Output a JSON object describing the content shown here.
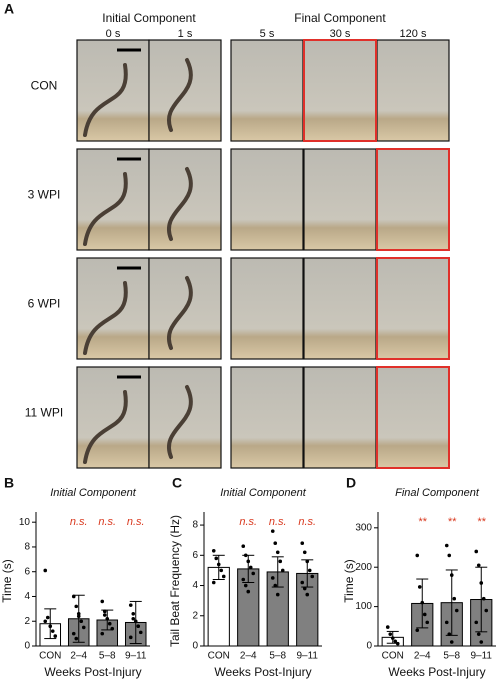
{
  "panel_a": {
    "label": "A",
    "headers": [
      "Initial Component",
      "Final Component"
    ],
    "times": [
      "0 s",
      "1 s",
      "5 s",
      "30 s",
      "120 s"
    ],
    "rows": [
      {
        "label": "CON",
        "highlight": 3
      },
      {
        "label": "3 WPI",
        "highlight": 4
      },
      {
        "label": "6 WPI",
        "highlight": 4
      },
      {
        "label": "11 WPI",
        "highlight": 4
      }
    ]
  },
  "chart_data": [
    {
      "type": "bar",
      "panel_label": "B",
      "title": "Initial Component",
      "y_label": "Time (s)",
      "x_label": "Weeks Post-Injury",
      "categories": [
        "CON",
        "2–4",
        "5–8",
        "9–11"
      ],
      "values": [
        1.8,
        2.2,
        2.1,
        1.9
      ],
      "errors": [
        1.2,
        1.9,
        0.8,
        1.7
      ],
      "points": [
        [
          6.1,
          2.3,
          1.6,
          1.2,
          0.8,
          2.0
        ],
        [
          4.0,
          3.2,
          2.6,
          2.0,
          1.5,
          1.0,
          0.6,
          2.4
        ],
        [
          3.6,
          2.8,
          2.2,
          1.8,
          1.4,
          1.0,
          2.5
        ],
        [
          3.3,
          2.6,
          2.0,
          1.6,
          1.1,
          0.7,
          2.2
        ]
      ],
      "annotations": [
        null,
        "n.s.",
        "n.s.",
        "n.s."
      ],
      "colors": [
        "#ffffff",
        "#808080",
        "#808080",
        "#808080"
      ],
      "annotation_color": "#d9391f",
      "ylim": [
        0,
        10.5
      ],
      "yticks": [
        0,
        2,
        4,
        6,
        8,
        10
      ]
    },
    {
      "type": "bar",
      "panel_label": "C",
      "title": "Initial Component",
      "y_label": "Tail Beat Frequency (Hz)",
      "x_label": "Weeks Post-Injury",
      "categories": [
        "CON",
        "2–4",
        "5–8",
        "9–11"
      ],
      "values": [
        5.2,
        5.1,
        4.9,
        4.8
      ],
      "errors": [
        0.8,
        0.9,
        1.0,
        0.9
      ],
      "points": [
        [
          6.3,
          5.8,
          5.4,
          5.0,
          4.6,
          4.2
        ],
        [
          6.6,
          6.0,
          5.6,
          5.2,
          4.8,
          4.4,
          4.0,
          3.6
        ],
        [
          7.6,
          6.8,
          6.2,
          5.6,
          5.0,
          4.5,
          4.0,
          3.4
        ],
        [
          6.8,
          6.2,
          5.6,
          5.0,
          4.6,
          4.2,
          3.8,
          3.4
        ]
      ],
      "annotations": [
        null,
        "n.s.",
        "n.s.",
        "n.s."
      ],
      "colors": [
        "#ffffff",
        "#808080",
        "#808080",
        "#808080"
      ],
      "annotation_color": "#d9391f",
      "ylim": [
        0,
        8.6
      ],
      "yticks": [
        0,
        2,
        4,
        6,
        8
      ]
    },
    {
      "type": "bar",
      "panel_label": "D",
      "title": "Final Component",
      "y_label": "Time (s)",
      "x_label": "Weeks Post-Injury",
      "categories": [
        "CON",
        "2–4",
        "5–8",
        "9–11"
      ],
      "values": [
        22,
        108,
        110,
        118
      ],
      "errors": [
        15,
        62,
        83,
        82
      ],
      "points": [
        [
          48,
          30,
          20,
          12,
          6
        ],
        [
          230,
          150,
          110,
          80,
          60,
          40
        ],
        [
          255,
          230,
          180,
          120,
          90,
          60,
          30,
          10
        ],
        [
          240,
          205,
          160,
          120,
          90,
          60,
          30,
          10
        ]
      ],
      "annotations": [
        null,
        "**",
        "**",
        "**"
      ],
      "colors": [
        "#ffffff",
        "#808080",
        "#808080",
        "#808080"
      ],
      "annotation_color": "#d9391f",
      "ylim": [
        0,
        330
      ],
      "yticks": [
        0,
        100,
        200,
        300
      ]
    }
  ]
}
